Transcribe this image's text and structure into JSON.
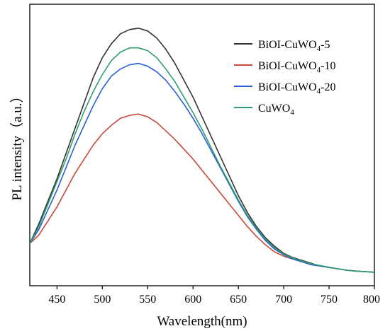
{
  "chart_data": {
    "type": "line",
    "xlabel": "Wavelength(nm)",
    "ylabel": "PL intensity（a.u.）",
    "xlim": [
      420,
      800
    ],
    "ylim": [
      0,
      1000
    ],
    "x_ticks": [
      "450",
      "500",
      "550",
      "600",
      "650",
      "700",
      "750",
      "800"
    ],
    "x_tick_values": [
      450,
      500,
      550,
      600,
      650,
      700,
      750,
      800
    ],
    "y_ticks_labeled": false,
    "grid": false,
    "legend": {
      "position": "top-right"
    },
    "x": [
      420,
      430,
      440,
      450,
      460,
      470,
      480,
      490,
      500,
      510,
      520,
      530,
      540,
      550,
      560,
      570,
      580,
      590,
      600,
      610,
      620,
      630,
      640,
      650,
      660,
      670,
      680,
      690,
      700,
      710,
      720,
      730,
      740,
      750,
      760,
      770,
      780,
      790,
      800
    ],
    "series": [
      {
        "name": "BiOI-CuWO4-5",
        "label_main": "BiOI-CuWO",
        "label_sub": "4",
        "label_suffix": "-5",
        "color": "#333333",
        "values": [
          150,
          220,
          300,
          380,
          470,
          560,
          650,
          740,
          810,
          860,
          895,
          910,
          915,
          905,
          880,
          840,
          790,
          730,
          670,
          600,
          530,
          460,
          390,
          320,
          260,
          210,
          170,
          140,
          115,
          100,
          90,
          80,
          70,
          65,
          60,
          55,
          52,
          50,
          48
        ]
      },
      {
        "name": "BiOI-CuWO4-10",
        "label_main": "BiOI-CuWO",
        "label_sub": "4",
        "label_suffix": "-10",
        "color": "#c8493e",
        "values": [
          150,
          180,
          230,
          280,
          340,
          400,
          450,
          500,
          540,
          570,
          595,
          605,
          610,
          600,
          580,
          550,
          520,
          485,
          450,
          410,
          370,
          330,
          290,
          250,
          210,
          175,
          145,
          120,
          105,
          95,
          85,
          75,
          70,
          65,
          60,
          55,
          52,
          50,
          48
        ]
      },
      {
        "name": "BiOI-CuWO4-20",
        "label_main": "BiOI-CuWO",
        "label_sub": "4",
        "label_suffix": "-20",
        "color": "#2b5fd9",
        "values": [
          150,
          200,
          270,
          340,
          420,
          500,
          570,
          640,
          700,
          745,
          770,
          785,
          790,
          780,
          760,
          730,
          690,
          645,
          595,
          540,
          480,
          420,
          360,
          300,
          245,
          200,
          160,
          130,
          110,
          95,
          85,
          75,
          70,
          65,
          60,
          55,
          52,
          50,
          48
        ]
      },
      {
        "name": "CuWO4",
        "label_main": "CuWO",
        "label_sub": "4",
        "label_suffix": "",
        "color": "#2e9e6e",
        "values": [
          150,
          210,
          290,
          370,
          450,
          540,
          620,
          690,
          750,
          800,
          830,
          845,
          845,
          835,
          810,
          770,
          725,
          670,
          615,
          555,
          490,
          425,
          365,
          305,
          250,
          205,
          165,
          135,
          112,
          98,
          88,
          78,
          72,
          66,
          60,
          55,
          52,
          50,
          48
        ]
      }
    ]
  }
}
